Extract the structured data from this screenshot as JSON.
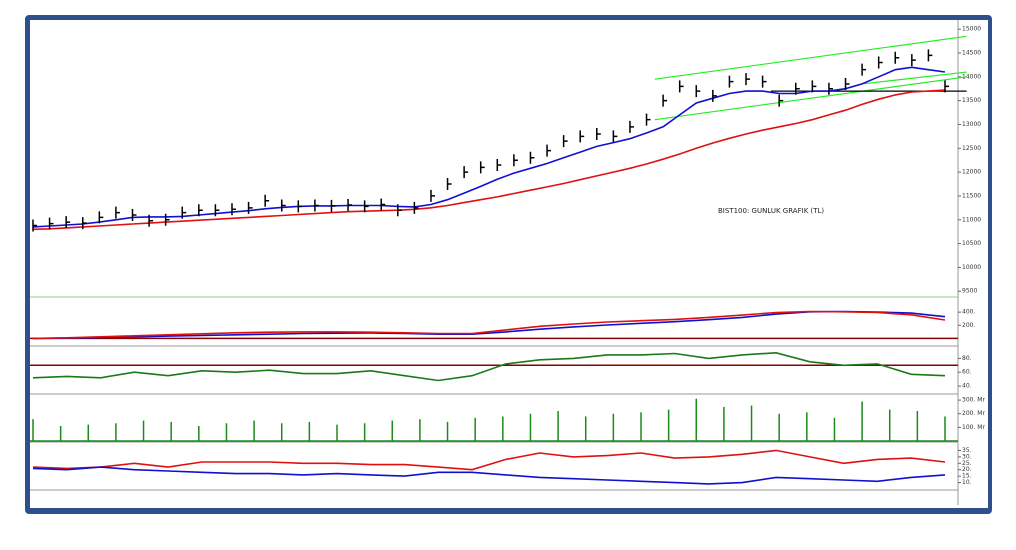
{
  "chart_data": [
    {
      "type": "stock",
      "annotation": "BIST100: GUNLUK GRAFIK (TL)",
      "values": [
        10880,
        10920,
        10950,
        10930,
        11050,
        11150,
        11100,
        10980,
        11000,
        11150,
        11200,
        11200,
        11220,
        11250,
        11400,
        11300,
        11280,
        11300,
        11290,
        11310,
        11280,
        11320,
        11200,
        11250,
        11500,
        11750,
        12000,
        12100,
        12150,
        12250,
        12300,
        12450,
        12650,
        12750,
        12800,
        12750,
        12950,
        13100,
        13500,
        13800,
        13700,
        13600,
        13900,
        13950,
        13900,
        13500,
        13750,
        13800,
        13750,
        13850,
        14150,
        14300,
        14400,
        14350,
        14450,
        13800
      ],
      "color": "#000000",
      "series": [
        {
          "color": "#1010d0",
          "values": [
            10850,
            10870,
            10890,
            10910,
            10950,
            11000,
            11050,
            11060,
            11060,
            11070,
            11100,
            11130,
            11160,
            11190,
            11230,
            11260,
            11280,
            11290,
            11290,
            11300,
            11300,
            11300,
            11280,
            11270,
            11320,
            11420,
            11560,
            11700,
            11850,
            11980,
            12080,
            12180,
            12300,
            12420,
            12540,
            12620,
            12700,
            12820,
            12950,
            13200,
            13450,
            13550,
            13650,
            13700,
            13700,
            13650,
            13650,
            13700,
            13700,
            13750,
            13850,
            14000,
            14150,
            14200,
            14150,
            14100
          ]
        },
        {
          "color": "#e01010",
          "values": [
            10800,
            10810,
            10830,
            10850,
            10870,
            10890,
            10910,
            10930,
            10950,
            10970,
            10990,
            11010,
            11030,
            11050,
            11070,
            11090,
            11110,
            11130,
            11150,
            11170,
            11180,
            11190,
            11200,
            11220,
            11250,
            11300,
            11360,
            11420,
            11480,
            11550,
            11620,
            11690,
            11760,
            11840,
            11920,
            12000,
            12080,
            12170,
            12270,
            12380,
            12500,
            12610,
            12710,
            12800,
            12880,
            12950,
            13020,
            13100,
            13200,
            13300,
            13420,
            13530,
            13620,
            13680,
            13700,
            13720
          ]
        }
      ],
      "trendlines": [
        {
          "color": "#22ee22",
          "x": [
            37.5,
            56.3
          ],
          "y": [
            13950,
            14850
          ]
        },
        {
          "color": "#22ee22",
          "x": [
            37.5,
            56.3
          ],
          "y": [
            13100,
            14000
          ]
        },
        {
          "color": "#22ee22",
          "x": [
            50,
            56.3
          ],
          "y": [
            13850,
            14100
          ]
        },
        {
          "color": "#000000",
          "x": [
            44.5,
            56.3
          ],
          "y": [
            13700,
            13700
          ]
        }
      ],
      "ylim": [
        9400,
        15150
      ],
      "yticks": [
        9500,
        10000,
        10500,
        11000,
        11500,
        12000,
        12500,
        13000,
        13500,
        14000,
        14500,
        15000
      ]
    },
    {
      "type": "line",
      "series": [
        {
          "color": "#1010d0",
          "values": [
            0,
            5,
            15,
            25,
            35,
            45,
            55,
            65,
            75,
            80,
            82,
            75,
            65,
            65,
            100,
            140,
            175,
            205,
            230,
            255,
            285,
            320,
            370,
            405,
            410,
            400,
            385,
            330
          ]
        },
        {
          "color": "#e01010",
          "values": [
            0,
            10,
            25,
            40,
            55,
            70,
            85,
            95,
            100,
            100,
            95,
            85,
            75,
            75,
            130,
            185,
            220,
            250,
            270,
            290,
            320,
            355,
            395,
            410,
            405,
            395,
            360,
            280
          ]
        }
      ],
      "hlines": [
        {
          "value": 0,
          "color": "#8b0000"
        }
      ],
      "ylim": [
        -100,
        600
      ],
      "yticks": [
        {
          "value": 200,
          "label": "200."
        },
        {
          "value": 400,
          "label": "400."
        }
      ]
    },
    {
      "type": "line",
      "series": [
        {
          "color": "#1a7a1a",
          "values": [
            52,
            54,
            52,
            60,
            55,
            62,
            60,
            63,
            58,
            58,
            62,
            55,
            48,
            55,
            72,
            78,
            80,
            85,
            85,
            87,
            80,
            85,
            88,
            75,
            70,
            72,
            57,
            55
          ]
        }
      ],
      "hlines": [
        {
          "value": 70,
          "color": "#8b0000"
        }
      ],
      "ylim": [
        30,
        95
      ],
      "yticks": [
        {
          "value": 40,
          "label": "40."
        },
        {
          "value": 60,
          "label": "60."
        },
        {
          "value": 80,
          "label": "80."
        }
      ]
    },
    {
      "type": "bar",
      "color": "#1a8a1a",
      "values": [
        160,
        110,
        120,
        130,
        150,
        140,
        110,
        130,
        150,
        130,
        140,
        120,
        130,
        150,
        160,
        140,
        170,
        180,
        200,
        220,
        180,
        200,
        210,
        230,
        310,
        250,
        260,
        200,
        210,
        170,
        290,
        230,
        220,
        180
      ],
      "hlines": [
        {
          "value": 0,
          "color": "#1a8a1a"
        }
      ],
      "ylim": [
        0,
        330
      ],
      "yticks": [
        {
          "value": 100,
          "label": "100. Mr"
        },
        {
          "value": 200,
          "label": "200. Mr"
        },
        {
          "value": 300,
          "label": "300. Mr"
        }
      ]
    },
    {
      "type": "line",
      "series": [
        {
          "color": "#e01010",
          "values": [
            22,
            21,
            22,
            25,
            22,
            26,
            26,
            26,
            25,
            25,
            24,
            24,
            22,
            20,
            28,
            33,
            30,
            31,
            33,
            29,
            30,
            32,
            35,
            30,
            25,
            28,
            29,
            26
          ]
        },
        {
          "color": "#1010d0",
          "values": [
            21,
            20,
            22,
            20,
            19,
            18,
            17,
            17,
            16,
            17,
            16,
            15,
            18,
            18,
            16,
            14,
            13,
            12,
            11,
            10,
            9,
            10,
            14,
            13,
            12,
            11,
            14,
            16
          ]
        }
      ],
      "ylim": [
        5,
        40
      ],
      "yticks": [
        {
          "value": 10,
          "label": "10."
        },
        {
          "value": 15,
          "label": "15."
        },
        {
          "value": 20,
          "label": "20."
        },
        {
          "value": 25,
          "label": "25."
        },
        {
          "value": 30,
          "label": "30."
        },
        {
          "value": 35,
          "label": "35."
        }
      ]
    }
  ]
}
